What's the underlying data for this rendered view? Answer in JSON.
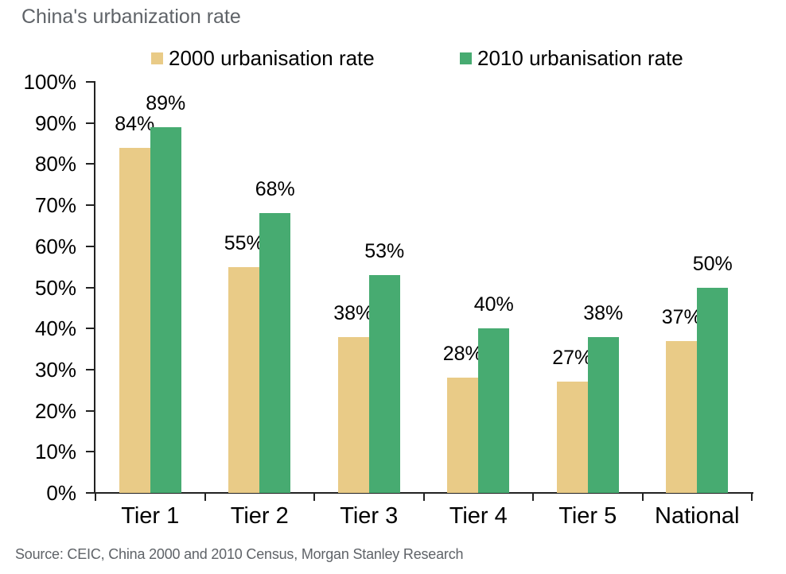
{
  "title": "China's urbanization rate",
  "source": "Source: CEIC, China 2000 and 2010 Census, Morgan Stanley Research",
  "chart_data": {
    "type": "bar",
    "title": "China's urbanization rate",
    "categories": [
      "Tier 1",
      "Tier 2",
      "Tier 3",
      "Tier 4",
      "Tier 5",
      "National"
    ],
    "series": [
      {
        "name": "2000 urbanisation rate",
        "color": "#e9cb87",
        "values": [
          84,
          55,
          38,
          28,
          27,
          37
        ],
        "labels": [
          "84%",
          "55%",
          "38%",
          "28%",
          "27%",
          "37%"
        ]
      },
      {
        "name": "2010 urbanisation rate",
        "color": "#47ab71",
        "values": [
          89,
          68,
          53,
          40,
          38,
          50
        ],
        "labels": [
          "89%",
          "68%",
          "53%",
          "40%",
          "38%",
          "50%"
        ]
      }
    ],
    "xlabel": "",
    "ylabel": "",
    "ylim": [
      0,
      100
    ],
    "ytick_step": 10,
    "ytick_labels": [
      "0%",
      "10%",
      "20%",
      "30%",
      "40%",
      "50%",
      "60%",
      "70%",
      "80%",
      "90%",
      "100%"
    ],
    "grid": false,
    "legend_position": "top",
    "axis_color": "#222222",
    "text_color": "#000000",
    "muted_text_color": "#5f6368"
  }
}
